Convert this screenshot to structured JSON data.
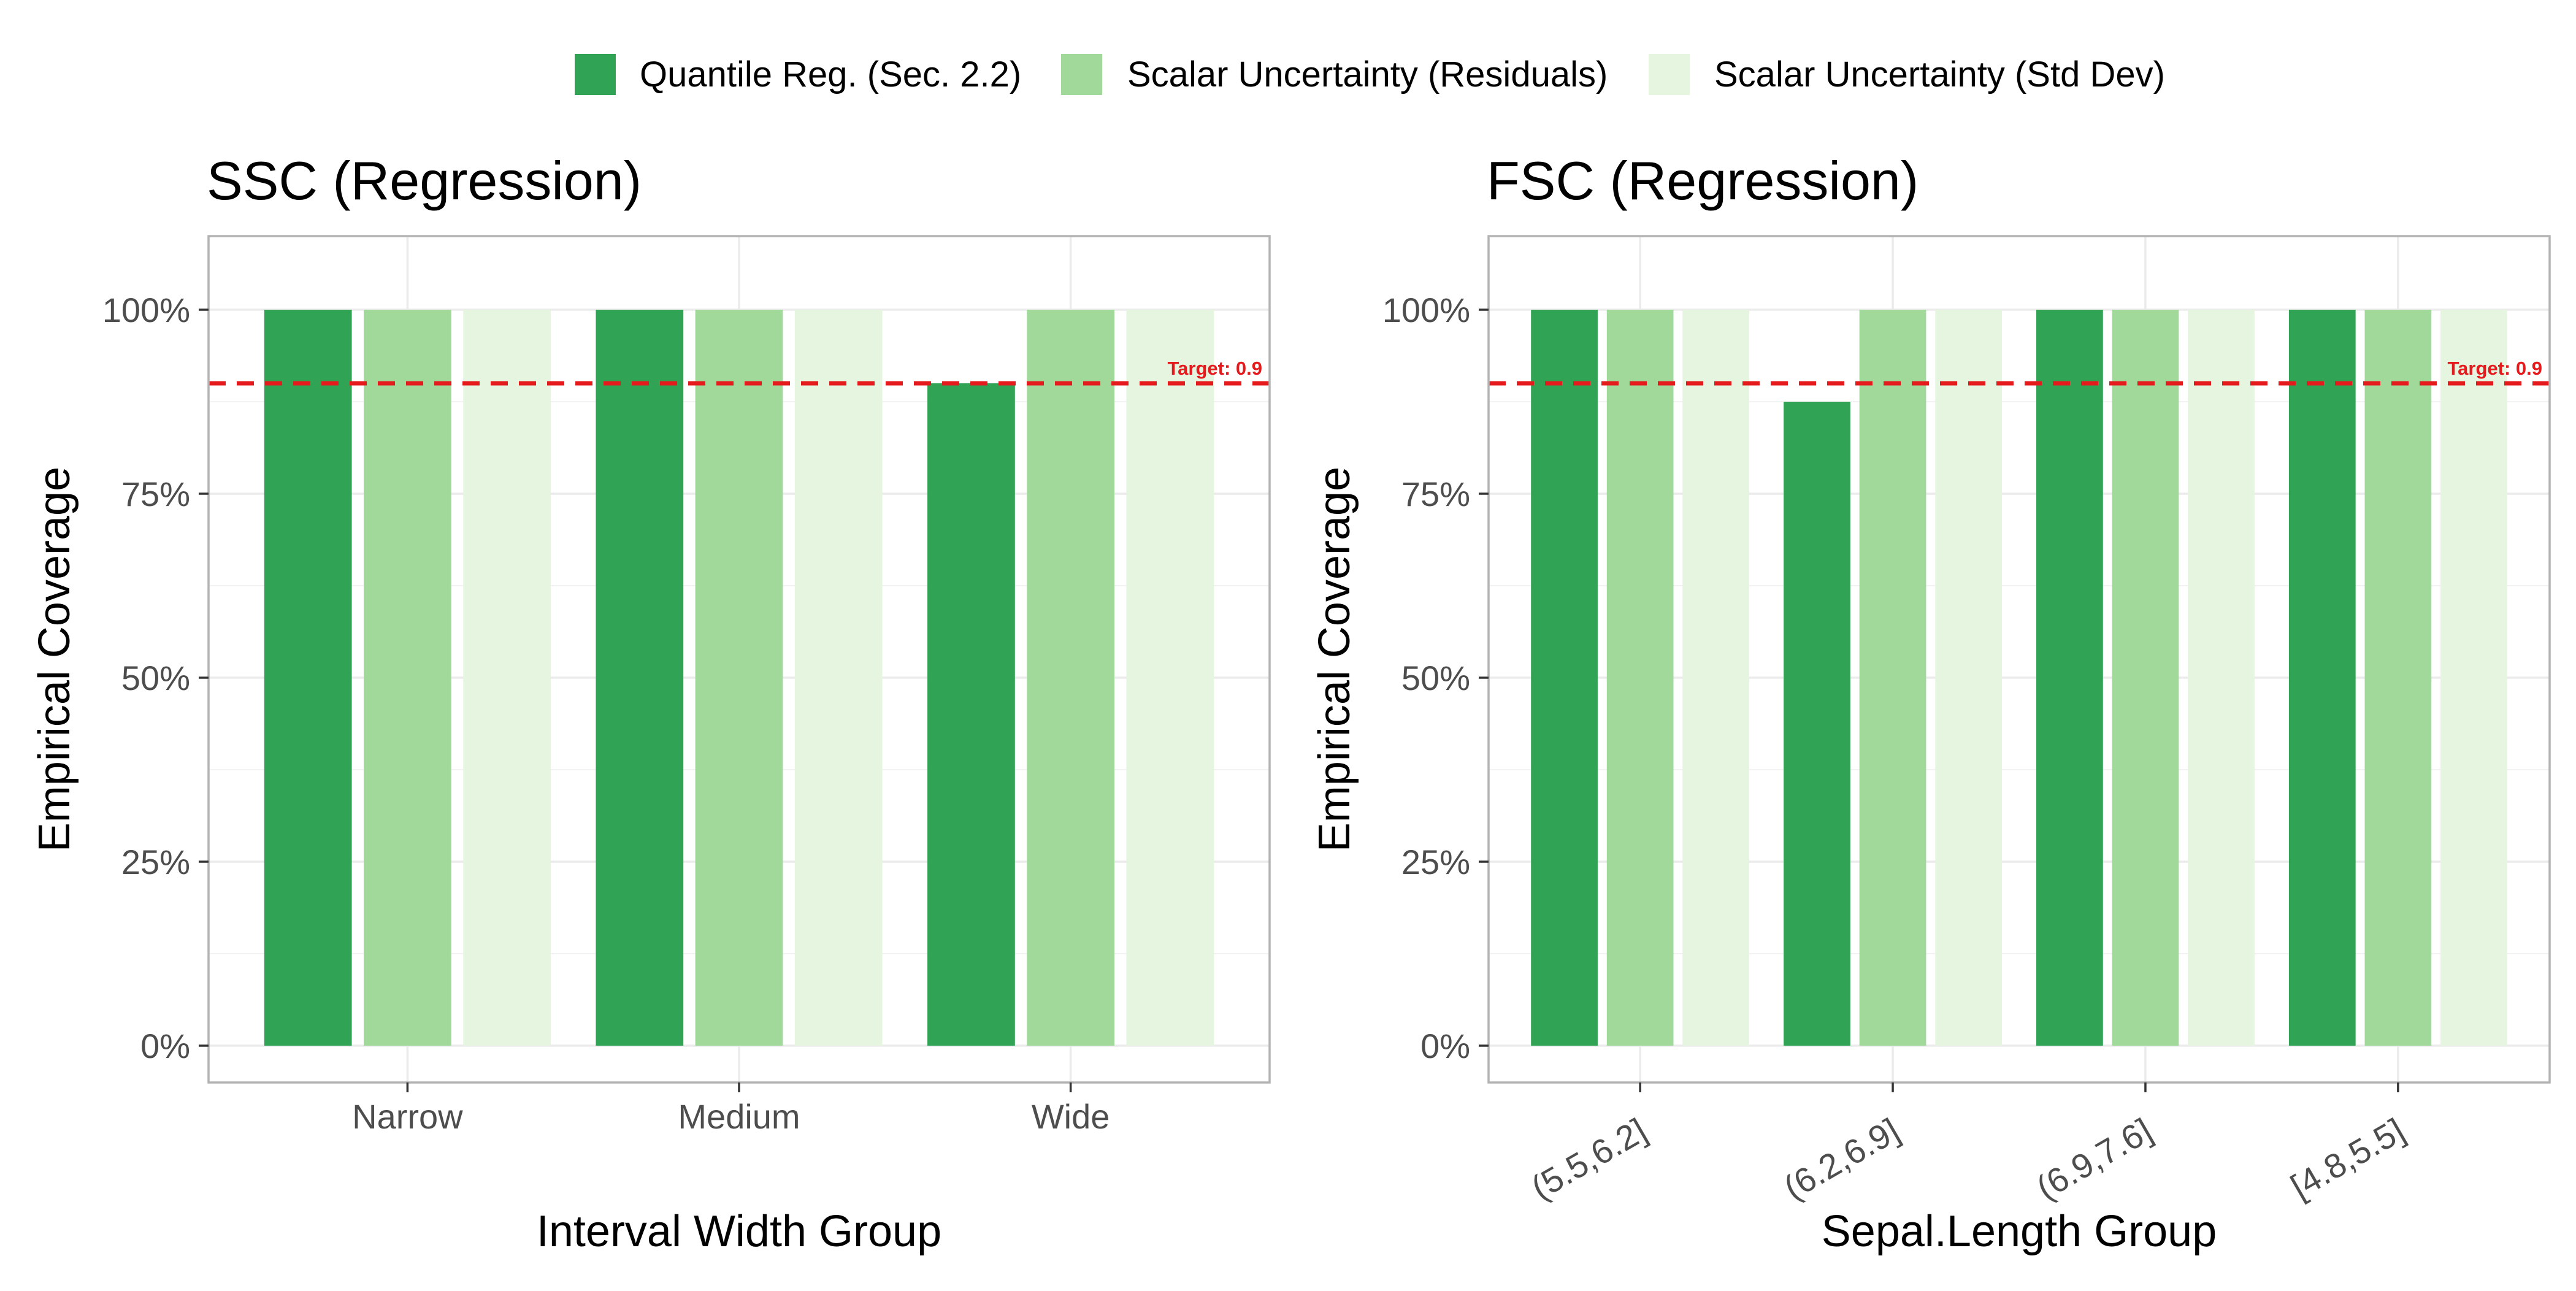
{
  "chart_data": [
    {
      "type": "bar",
      "title": "SSC (Regression)",
      "xlabel": "Interval Width Group",
      "ylabel": "Empirical Coverage",
      "categories": [
        "Narrow",
        "Medium",
        "Wide"
      ],
      "series": [
        {
          "name": "Quantile Reg. (Sec. 2.2)",
          "values": [
            1.0,
            1.0,
            0.9
          ]
        },
        {
          "name": "Scalar Uncertainty (Residuals)",
          "values": [
            1.0,
            1.0,
            1.0
          ]
        },
        {
          "name": "Scalar Uncertainty (Std Dev)",
          "values": [
            1.0,
            1.0,
            1.0
          ]
        }
      ],
      "ylim": [
        -0.05,
        1.1
      ],
      "yticks": [
        0,
        0.25,
        0.5,
        0.75,
        1.0
      ],
      "ytick_labels": [
        "0%",
        "25%",
        "50%",
        "75%",
        "100%"
      ],
      "target": {
        "value": 0.9,
        "label": "Target: 0.9"
      },
      "x_tick_rotation": 0,
      "grid": true
    },
    {
      "type": "bar",
      "title": "FSC (Regression)",
      "xlabel": "Sepal.Length Group",
      "ylabel": "Empirical Coverage",
      "categories": [
        "(5.5,6.2]",
        "(6.2,6.9]",
        "(6.9,7.6]",
        "[4.8,5.5]"
      ],
      "series": [
        {
          "name": "Quantile Reg. (Sec. 2.2)",
          "values": [
            1.0,
            0.875,
            1.0,
            1.0
          ]
        },
        {
          "name": "Scalar Uncertainty (Residuals)",
          "values": [
            1.0,
            1.0,
            1.0,
            1.0
          ]
        },
        {
          "name": "Scalar Uncertainty (Std Dev)",
          "values": [
            1.0,
            1.0,
            1.0,
            1.0
          ]
        }
      ],
      "ylim": [
        -0.05,
        1.1
      ],
      "yticks": [
        0,
        0.25,
        0.5,
        0.75,
        1.0
      ],
      "ytick_labels": [
        "0%",
        "25%",
        "50%",
        "75%",
        "100%"
      ],
      "target": {
        "value": 0.9,
        "label": "Target: 0.9"
      },
      "x_tick_rotation": -30,
      "grid": true
    }
  ],
  "legend": {
    "position": "top",
    "items": [
      {
        "label": "Quantile Reg. (Sec. 2.2)",
        "color": "#31a354"
      },
      {
        "label": "Scalar Uncertainty (Residuals)",
        "color": "#a1d99b"
      },
      {
        "label": "Scalar Uncertainty (Std Dev)",
        "color": "#e5f5e0"
      }
    ]
  },
  "colors": {
    "series": [
      "#31a354",
      "#a1d99b",
      "#e5f5e0"
    ],
    "target_line": "#e41a1c",
    "grid": "#ebebeb",
    "panel_border": "#b3b3b3"
  }
}
